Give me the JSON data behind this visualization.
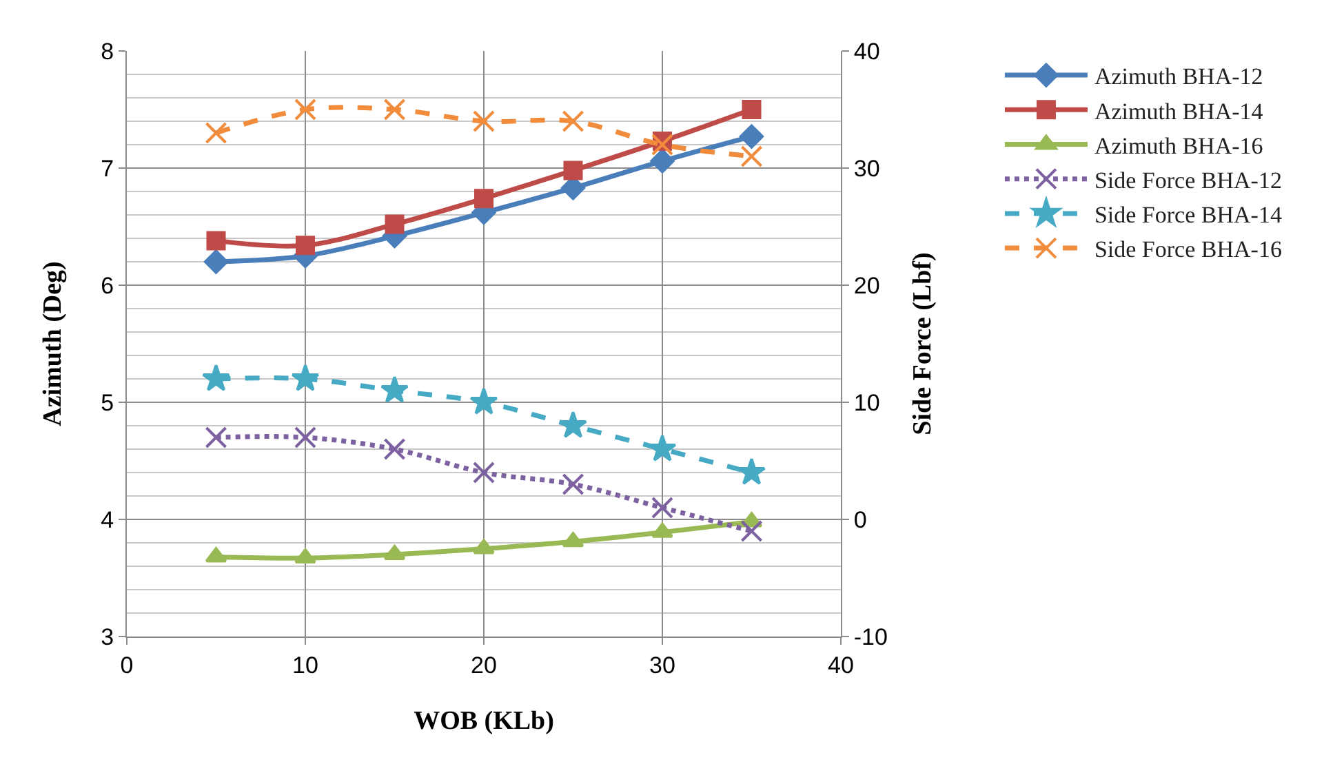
{
  "chart_data": {
    "type": "line",
    "xlabel": "WOB (KLb)",
    "ylabel": "Azimuth (Deg)",
    "y2label": "Side Force (Lbf)",
    "x": [
      5,
      10,
      15,
      20,
      25,
      30,
      35
    ],
    "xlim": [
      0,
      40
    ],
    "xticks": [
      0,
      10,
      20,
      30,
      40
    ],
    "ylim": [
      3,
      8
    ],
    "yticks": [
      3,
      4,
      5,
      6,
      7,
      8
    ],
    "y2lim": [
      -10,
      40
    ],
    "y2ticks": [
      -10,
      0,
      10,
      20,
      30,
      40
    ],
    "grid": true,
    "legend": "right",
    "series": [
      {
        "name": "Azimuth BHA-12",
        "color": "#4a7ebb",
        "marker": "diamond",
        "line_style": "solid",
        "values": [
          6.2,
          6.25,
          6.42,
          6.62,
          6.83,
          7.06,
          7.27
        ]
      },
      {
        "name": "Azimuth BHA-14",
        "color": "#be4b48",
        "marker": "square",
        "line_style": "solid",
        "values": [
          6.38,
          6.34,
          6.52,
          6.74,
          6.98,
          7.23,
          7.5
        ]
      },
      {
        "name": "Azimuth BHA-16",
        "color": "#98b954",
        "marker": "triangle",
        "line_style": "solid",
        "values": [
          3.68,
          3.67,
          3.7,
          3.75,
          3.81,
          3.89,
          3.98
        ]
      },
      {
        "name": "Side Force BHA-12",
        "color": "#7d60a0",
        "marker": "cross",
        "line_style": "dotted",
        "axis": "y2",
        "values": [
          7,
          7,
          6,
          4,
          3,
          1,
          -1
        ]
      },
      {
        "name": "Side Force BHA-14",
        "color": "#46aac5",
        "marker": "star",
        "line_style": "dashed",
        "axis": "y2",
        "values": [
          12,
          12,
          11,
          10,
          8,
          6,
          4
        ]
      },
      {
        "name": "Side Force BHA-16",
        "color": "#f08c3c",
        "marker": "cross",
        "line_style": "dashed",
        "axis": "y2",
        "values": [
          33,
          35,
          35,
          34,
          34,
          32,
          31
        ]
      }
    ]
  }
}
